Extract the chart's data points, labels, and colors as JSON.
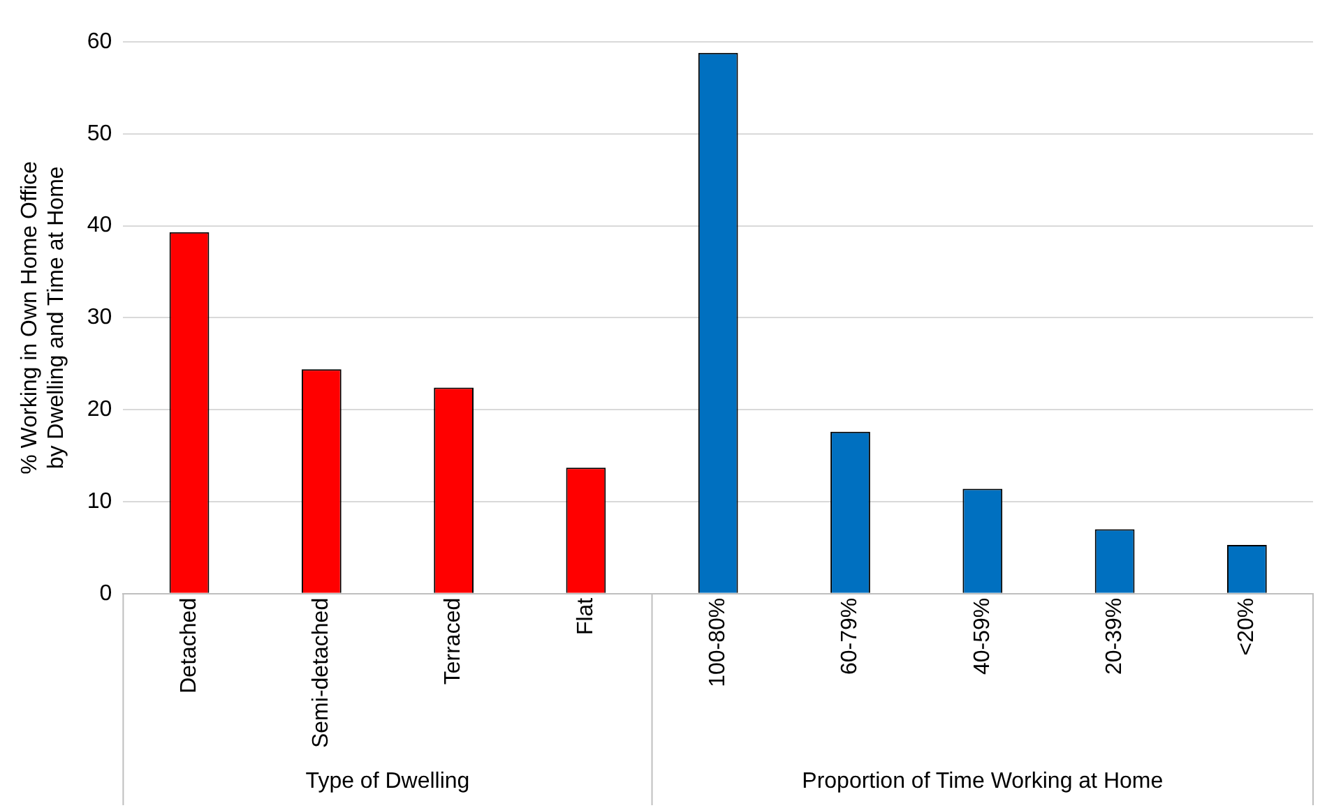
{
  "chart_data": {
    "type": "bar",
    "ylabel": "% Working in Own Home Office by Dwelling and Time at Home",
    "categories": [
      "Detached",
      "Semi-detached",
      "Terraced",
      "Flat",
      "100-80%",
      "60-79%",
      "40-59%",
      "20-39%",
      "<20%"
    ],
    "values": [
      39.3,
      24.4,
      22.4,
      13.7,
      58.8,
      17.6,
      11.4,
      7.0,
      5.3
    ],
    "colors": [
      "#ff0000",
      "#ff0000",
      "#ff0000",
      "#ff0000",
      "#0070c0",
      "#0070c0",
      "#0070c0",
      "#0070c0",
      "#0070c0"
    ],
    "annotations": [
      "Type of Dwelling",
      "Proportion of Time Working at Home"
    ],
    "ylim": [
      0,
      60
    ],
    "yticks": [
      0,
      10,
      20,
      30,
      40,
      50,
      60
    ],
    "grid": "y"
  }
}
